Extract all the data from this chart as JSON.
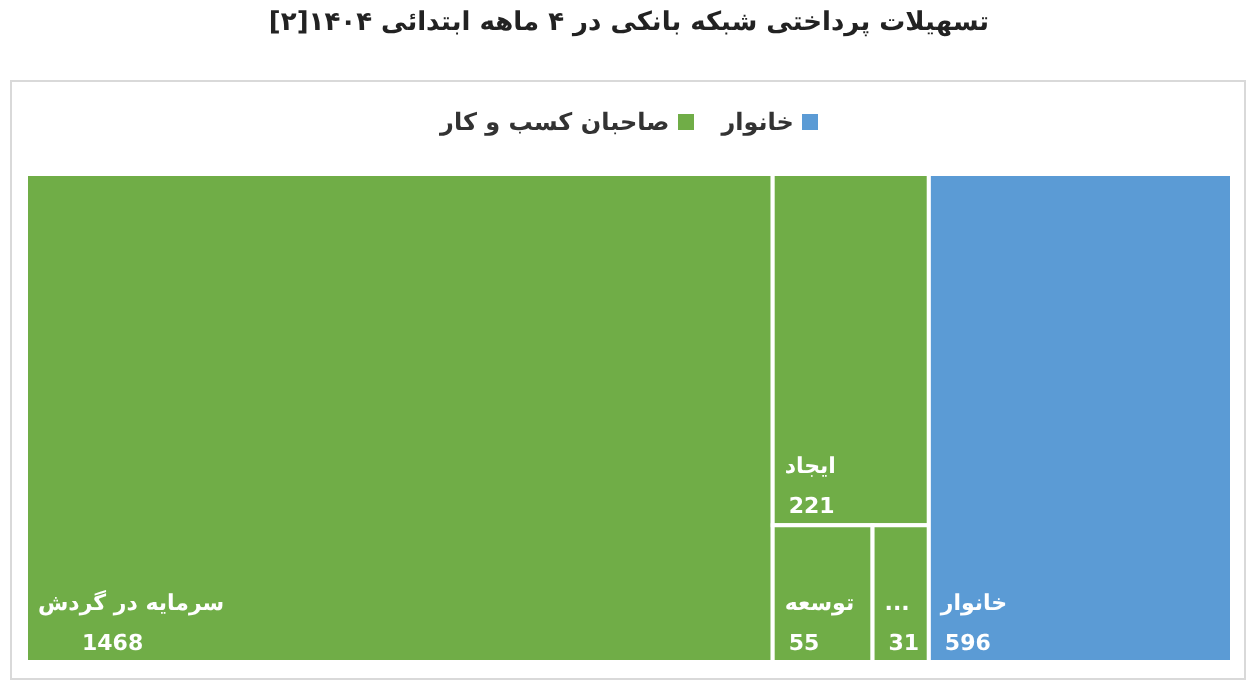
{
  "chart_data": {
    "type": "other",
    "title": "تسهیلات پرداختی شبکه بانکی در ۴ ماهه ابتدائی ۱۴۰۴[۲]",
    "legend": "top",
    "data_labels": true,
    "categories": [
      "سرمایه در گردش",
      "ایجاد",
      "توسعه",
      "...",
      "خانوار"
    ],
    "series": [
      {
        "name": "خانوار",
        "color": "#5b9bd5",
        "values": [
          null,
          null,
          null,
          null,
          596
        ]
      },
      {
        "name": "صاحبان کسب و کار",
        "color": "#70ad47",
        "values": [
          1468,
          221,
          55,
          31,
          null
        ]
      }
    ]
  }
}
